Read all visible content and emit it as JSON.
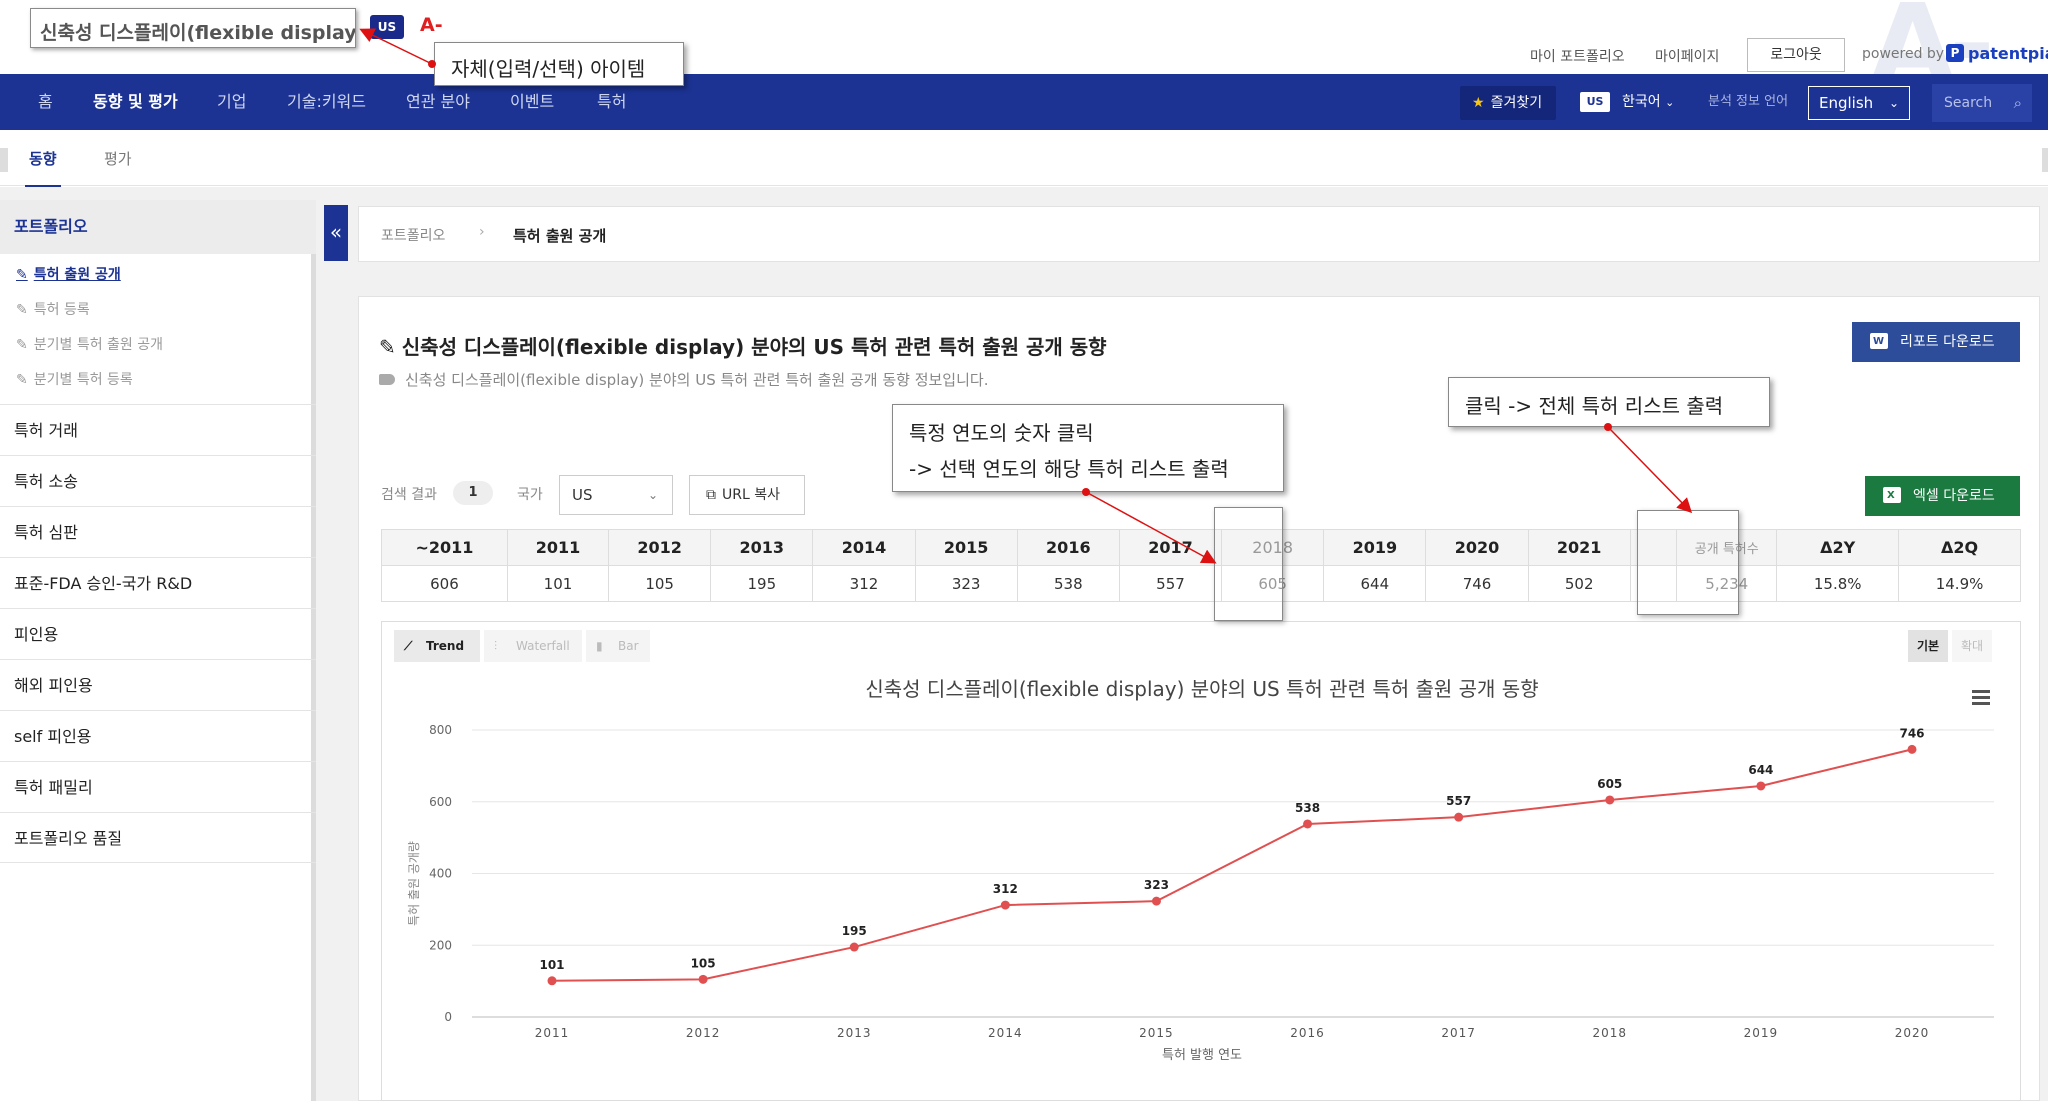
{
  "header": {
    "app_title": "신축성 디스플레이(flexible display)",
    "country_badge": "US",
    "grade": "A-",
    "links": [
      "마이 포트폴리오",
      "마이페이지"
    ],
    "logout": "로그아웃",
    "powered_by": "powered by",
    "brand_logo_letter": "P",
    "brand_name": "patentpia"
  },
  "nav": {
    "items": [
      "홈",
      "동향 및 평가",
      "기업",
      "기술:키워드",
      "연관 분야",
      "이벤트",
      "특허"
    ],
    "active_index": 1,
    "favorite": "즐겨찾기",
    "lang_badge": "US",
    "lang": "한국어",
    "analysis_lang_label": "분석 정보 언어",
    "analysis_lang_value": "English",
    "search_placeholder": "Search"
  },
  "subtabs": {
    "items": [
      "동향",
      "평가"
    ],
    "active_index": 0
  },
  "sidebar": {
    "head": "포트폴리오",
    "subitems": [
      "특허 출원 공개",
      "특허 등록",
      "분기별 특허 출원 공개",
      "분기별 특허 등록"
    ],
    "active_sub": 0,
    "items": [
      "특허 거래",
      "특허 소송",
      "특허 심판",
      "표준-FDA 승인-국가 R&D",
      "피인용",
      "해외 피인용",
      "self 피인용",
      "특허 패밀리",
      "포트폴리오 품질"
    ]
  },
  "breadcrumb": {
    "parent": "포트폴리오",
    "current": "특허 출원 공개"
  },
  "main": {
    "title": "신축성 디스플레이(flexible display) 분야의 US 특허 관련 특허 출원 공개 동향",
    "description": "신축성 디스플레이(flexible display) 분야의 US 특허 관련 특허 출원 공개 동향 정보입니다.",
    "report_button": "리포트 다운로드",
    "excel_button": "엑셀 다운로드",
    "search_result_label": "검색 결과",
    "search_result_count": "1",
    "country_label": "국가",
    "country_value": "US",
    "url_copy": "URL 복사"
  },
  "year_table": {
    "headers": [
      "~2011",
      "2011",
      "2012",
      "2013",
      "2014",
      "2015",
      "2016",
      "2017",
      "2018",
      "2019",
      "2020",
      "2021",
      "",
      "공개 특허수",
      "Δ2Y",
      "Δ2Q"
    ],
    "values": [
      "606",
      "101",
      "105",
      "195",
      "312",
      "323",
      "538",
      "557",
      "605",
      "644",
      "746",
      "502",
      "",
      "5,234",
      "15.8%",
      "14.9%"
    ]
  },
  "chart_controls": {
    "types": [
      "Trend",
      "Waterfall",
      "Bar"
    ],
    "active_type": 0,
    "views": [
      "기본",
      "확대"
    ],
    "active_view": 0,
    "menu_icon": "hamburger-icon"
  },
  "chart_data": {
    "type": "line",
    "title": "신축성 디스플레이(flexible display) 분야의 US 특허 관련 특허 출원 공개 동향",
    "xlabel": "특허 발행 연도",
    "ylabel": "특허 출원 공개량",
    "categories": [
      "2011",
      "2012",
      "2013",
      "2014",
      "2015",
      "2016",
      "2017",
      "2018",
      "2019",
      "2020"
    ],
    "series": [
      {
        "values": [
          101,
          105,
          195,
          312,
          323,
          538,
          557,
          605,
          644,
          746
        ],
        "color": "#e05050"
      }
    ],
    "y_ticks": [
      0,
      200,
      400,
      600,
      800
    ],
    "ylim": [
      0,
      800
    ],
    "grid": true,
    "legend": "none"
  },
  "annotations": {
    "self_item": "자체(입력/선택) 아이템",
    "year_click_line1": "특정 연도의 숫자 클릭",
    "year_click_line2": "-> 선택 연도의 해당 특허 리스트 출력",
    "total_click": "클릭 -> 전체 특허 리스트 출력",
    "arrow_color": "#dd1111"
  }
}
